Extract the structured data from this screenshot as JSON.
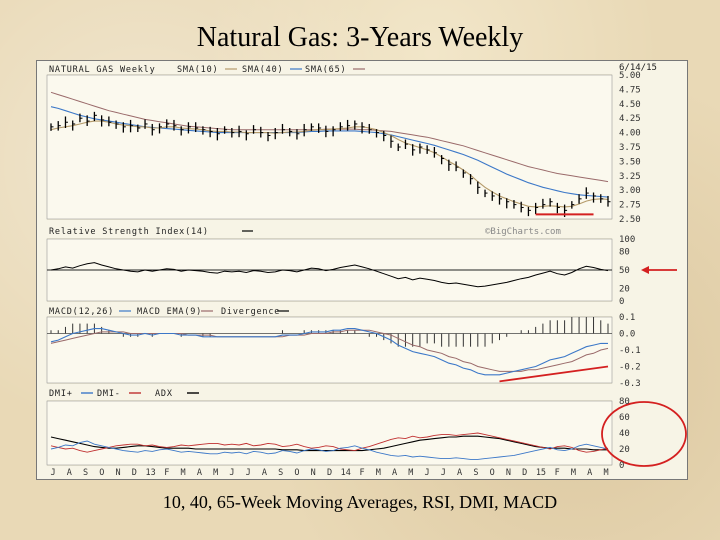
{
  "slide": {
    "title": "Natural Gas: 3-Years Weekly",
    "caption": "10, 40, 65-Week Moving Averages, RSI, DMI, MACD"
  },
  "colors": {
    "price": "#000000",
    "sma10": "#b59b6a",
    "sma40": "#3c78c8",
    "sma65": "#9a6a6a",
    "rsi": "#000000",
    "macd": "#000000",
    "macd_ema": "#3c78c8",
    "dmi_plus": "#3c78c8",
    "dmi_minus": "#c03030",
    "adx": "#000000",
    "annotation": "#d42020"
  },
  "chart_data": [
    {
      "type": "line",
      "header": "NATURAL GAS Weekly",
      "date_stamp": "6/14/15",
      "legend": [
        "SMA(10)",
        "SMA(40)",
        "SMA(65)"
      ],
      "yticks": [
        "5.00",
        "4.75",
        "4.50",
        "4.25",
        "4.00",
        "3.75",
        "3.50",
        "3.25",
        "3.00",
        "2.75",
        "2.50"
      ],
      "ylim": [
        2.5,
        5.0
      ],
      "price": [
        4.1,
        4.12,
        4.18,
        4.15,
        4.25,
        4.2,
        4.3,
        4.22,
        4.18,
        4.15,
        4.1,
        4.12,
        4.08,
        4.15,
        4.05,
        4.1,
        4.15,
        4.12,
        4.05,
        4.1,
        4.08,
        4.05,
        4.02,
        3.98,
        4.05,
        4.0,
        4.02,
        3.98,
        4.05,
        4.0,
        3.95,
        4.0,
        4.05,
        4.02,
        3.98,
        4.05,
        4.1,
        4.08,
        4.02,
        4.05,
        4.1,
        4.12,
        4.15,
        4.1,
        4.05,
        4.0,
        3.95,
        3.85,
        3.75,
        3.8,
        3.7,
        3.75,
        3.7,
        3.65,
        3.55,
        3.45,
        3.4,
        3.3,
        3.2,
        3.05,
        2.95,
        2.9,
        2.85,
        2.8,
        2.75,
        2.7,
        2.65,
        2.7,
        2.75,
        2.8,
        2.7,
        2.65,
        2.75,
        2.85,
        2.95,
        2.9,
        2.85,
        2.8
      ],
      "sma10": [
        4.05,
        4.08,
        4.1,
        4.12,
        4.15,
        4.18,
        4.2,
        4.2,
        4.18,
        4.15,
        4.13,
        4.12,
        4.1,
        4.1,
        4.08,
        4.08,
        4.1,
        4.1,
        4.08,
        4.07,
        4.06,
        4.05,
        4.03,
        4.02,
        4.02,
        4.01,
        4.01,
        4.0,
        4.0,
        4.0,
        4.0,
        3.99,
        4.0,
        4.01,
        4.01,
        4.02,
        4.04,
        4.05,
        4.05,
        4.06,
        4.07,
        4.08,
        4.1,
        4.1,
        4.08,
        4.05,
        4.0,
        3.95,
        3.88,
        3.82,
        3.78,
        3.74,
        3.7,
        3.65,
        3.58,
        3.5,
        3.43,
        3.35,
        3.26,
        3.15,
        3.05,
        2.97,
        2.9,
        2.85,
        2.8,
        2.76,
        2.72,
        2.71,
        2.72,
        2.73,
        2.72,
        2.71,
        2.72,
        2.76,
        2.81,
        2.84,
        2.85,
        2.84
      ],
      "sma40": [
        4.45,
        4.42,
        4.38,
        4.34,
        4.3,
        4.27,
        4.24,
        4.22,
        4.2,
        4.18,
        4.16,
        4.14,
        4.12,
        4.1,
        4.09,
        4.08,
        4.07,
        4.06,
        4.05,
        4.04,
        4.03,
        4.02,
        4.01,
        4.0,
        4.0,
        4.0,
        4.0,
        4.0,
        4.0,
        4.0,
        4.0,
        4.0,
        4.0,
        4.0,
        4.0,
        4.01,
        4.02,
        4.02,
        4.03,
        4.03,
        4.03,
        4.03,
        4.03,
        4.02,
        4.01,
        4.0,
        3.98,
        3.96,
        3.93,
        3.9,
        3.87,
        3.84,
        3.81,
        3.78,
        3.74,
        3.7,
        3.66,
        3.62,
        3.57,
        3.52,
        3.46,
        3.4,
        3.34,
        3.28,
        3.23,
        3.18,
        3.13,
        3.09,
        3.05,
        3.02,
        2.99,
        2.96,
        2.94,
        2.92,
        2.91,
        2.9,
        2.89,
        2.88
      ],
      "sma65": [
        4.7,
        4.66,
        4.62,
        4.58,
        4.54,
        4.5,
        4.46,
        4.42,
        4.38,
        4.35,
        4.32,
        4.29,
        4.26,
        4.23,
        4.21,
        4.19,
        4.17,
        4.15,
        4.13,
        4.11,
        4.1,
        4.09,
        4.08,
        4.07,
        4.06,
        4.05,
        4.05,
        4.05,
        4.05,
        4.05,
        4.05,
        4.05,
        4.05,
        4.05,
        4.05,
        4.05,
        4.05,
        4.05,
        4.06,
        4.06,
        4.06,
        4.06,
        4.06,
        4.05,
        4.05,
        4.04,
        4.03,
        4.02,
        4.0,
        3.98,
        3.96,
        3.94,
        3.92,
        3.89,
        3.86,
        3.83,
        3.8,
        3.77,
        3.73,
        3.69,
        3.65,
        3.61,
        3.57,
        3.53,
        3.49,
        3.45,
        3.41,
        3.38,
        3.35,
        3.32,
        3.29,
        3.27,
        3.25,
        3.23,
        3.21,
        3.19,
        3.17,
        3.15
      ]
    },
    {
      "type": "line",
      "header": "Relative Strength Index(14)",
      "watermark": "©BigCharts.com",
      "yticks": [
        "100",
        "80",
        "50",
        "20",
        "0"
      ],
      "ylim": [
        0,
        100
      ],
      "reference": 50,
      "rsi": [
        50,
        52,
        55,
        53,
        57,
        60,
        62,
        58,
        55,
        52,
        50,
        48,
        47,
        50,
        48,
        50,
        52,
        51,
        48,
        50,
        49,
        48,
        46,
        45,
        48,
        47,
        48,
        46,
        49,
        48,
        46,
        47,
        50,
        49,
        47,
        50,
        53,
        52,
        49,
        51,
        54,
        56,
        58,
        55,
        52,
        48,
        44,
        40,
        36,
        38,
        34,
        37,
        35,
        33,
        30,
        28,
        29,
        27,
        25,
        23,
        24,
        26,
        28,
        30,
        33,
        36,
        38,
        42,
        45,
        48,
        44,
        42,
        46,
        52,
        56,
        54,
        51,
        49
      ]
    },
    {
      "type": "line",
      "header": "MACD(12,26)",
      "legend": [
        "MACD EMA(9)",
        "Divergence"
      ],
      "yticks": [
        "0.1",
        "0.0",
        "-0.1",
        "-0.2",
        "-0.3"
      ],
      "ylim": [
        -0.3,
        0.1
      ],
      "macd": [
        -0.05,
        -0.04,
        -0.02,
        0.0,
        0.01,
        0.02,
        0.03,
        0.03,
        0.02,
        0.01,
        0.0,
        -0.01,
        -0.01,
        0.0,
        -0.01,
        0.0,
        0.0,
        0.0,
        -0.01,
        -0.01,
        -0.01,
        -0.02,
        -0.02,
        -0.02,
        -0.02,
        -0.02,
        -0.02,
        -0.02,
        -0.02,
        -0.02,
        -0.02,
        -0.02,
        -0.01,
        -0.01,
        -0.01,
        0.0,
        0.01,
        0.01,
        0.01,
        0.02,
        0.02,
        0.03,
        0.03,
        0.02,
        0.01,
        0.0,
        -0.02,
        -0.04,
        -0.07,
        -0.09,
        -0.11,
        -0.12,
        -0.13,
        -0.14,
        -0.16,
        -0.18,
        -0.19,
        -0.21,
        -0.22,
        -0.24,
        -0.25,
        -0.25,
        -0.25,
        -0.24,
        -0.23,
        -0.22,
        -0.21,
        -0.2,
        -0.18,
        -0.16,
        -0.15,
        -0.14,
        -0.12,
        -0.1,
        -0.08,
        -0.07,
        -0.06,
        -0.06
      ],
      "macd_ema": [
        -0.06,
        -0.05,
        -0.04,
        -0.03,
        -0.02,
        -0.01,
        0.0,
        0.01,
        0.01,
        0.01,
        0.01,
        0.0,
        0.0,
        0.0,
        0.0,
        0.0,
        0.0,
        0.0,
        0.0,
        -0.01,
        -0.01,
        -0.01,
        -0.01,
        -0.02,
        -0.02,
        -0.02,
        -0.02,
        -0.02,
        -0.02,
        -0.02,
        -0.02,
        -0.02,
        -0.02,
        -0.01,
        -0.01,
        -0.01,
        0.0,
        0.0,
        0.0,
        0.01,
        0.01,
        0.02,
        0.02,
        0.02,
        0.02,
        0.01,
        0.0,
        -0.01,
        -0.03,
        -0.05,
        -0.07,
        -0.08,
        -0.1,
        -0.11,
        -0.12,
        -0.14,
        -0.15,
        -0.17,
        -0.18,
        -0.2,
        -0.21,
        -0.22,
        -0.23,
        -0.23,
        -0.23,
        -0.23,
        -0.22,
        -0.22,
        -0.21,
        -0.2,
        -0.19,
        -0.18,
        -0.17,
        -0.15,
        -0.13,
        -0.12,
        -0.1,
        -0.09
      ]
    },
    {
      "type": "line",
      "header": "DMI",
      "legend": [
        "DMI+",
        "DMI-",
        "ADX"
      ],
      "yticks": [
        "80",
        "60",
        "40",
        "20",
        "0"
      ],
      "ylim": [
        0,
        80
      ],
      "dmi_plus": [
        20,
        22,
        25,
        24,
        28,
        30,
        26,
        24,
        22,
        20,
        18,
        17,
        16,
        18,
        17,
        19,
        20,
        18,
        16,
        17,
        16,
        15,
        14,
        14,
        16,
        15,
        16,
        14,
        17,
        16,
        14,
        15,
        18,
        17,
        15,
        18,
        20,
        19,
        17,
        18,
        21,
        22,
        24,
        21,
        19,
        16,
        14,
        12,
        11,
        12,
        10,
        11,
        10,
        9,
        8,
        8,
        9,
        8,
        7,
        7,
        8,
        9,
        10,
        11,
        12,
        14,
        16,
        18,
        20,
        22,
        19,
        18,
        20,
        24,
        26,
        24,
        22,
        20
      ],
      "dmi_minus": [
        24,
        22,
        20,
        21,
        18,
        16,
        18,
        20,
        22,
        24,
        25,
        26,
        26,
        24,
        25,
        23,
        22,
        23,
        25,
        24,
        25,
        26,
        27,
        27,
        25,
        26,
        25,
        27,
        24,
        25,
        27,
        26,
        23,
        24,
        26,
        23,
        21,
        22,
        24,
        23,
        20,
        19,
        18,
        21,
        23,
        26,
        29,
        32,
        34,
        33,
        36,
        34,
        35,
        37,
        38,
        38,
        37,
        38,
        39,
        40,
        38,
        36,
        34,
        32,
        30,
        28,
        26,
        24,
        22,
        20,
        23,
        24,
        22,
        18,
        16,
        17,
        19,
        21
      ],
      "adx": [
        35,
        33,
        31,
        29,
        27,
        25,
        23,
        22,
        21,
        21,
        22,
        23,
        24,
        24,
        23,
        22,
        21,
        21,
        21,
        21,
        20,
        20,
        20,
        20,
        20,
        20,
        20,
        20,
        20,
        20,
        20,
        20,
        19,
        19,
        19,
        18,
        18,
        18,
        18,
        18,
        18,
        18,
        18,
        18,
        19,
        20,
        21,
        23,
        25,
        27,
        29,
        31,
        32,
        33,
        34,
        35,
        35,
        36,
        36,
        36,
        35,
        34,
        33,
        31,
        29,
        27,
        25,
        23,
        22,
        21,
        21,
        21,
        20,
        20,
        20,
        19,
        19,
        19
      ]
    }
  ],
  "x_axis": {
    "tick_labels": [
      "J",
      "A",
      "S",
      "O",
      "N",
      "D",
      "13",
      "F",
      "M",
      "A",
      "M",
      "J",
      "J",
      "A",
      "S",
      "O",
      "N",
      "D",
      "14",
      "F",
      "M",
      "A",
      "M",
      "J",
      "J",
      "A",
      "S",
      "O",
      "N",
      "D",
      "15",
      "F",
      "M",
      "A",
      "M"
    ]
  }
}
